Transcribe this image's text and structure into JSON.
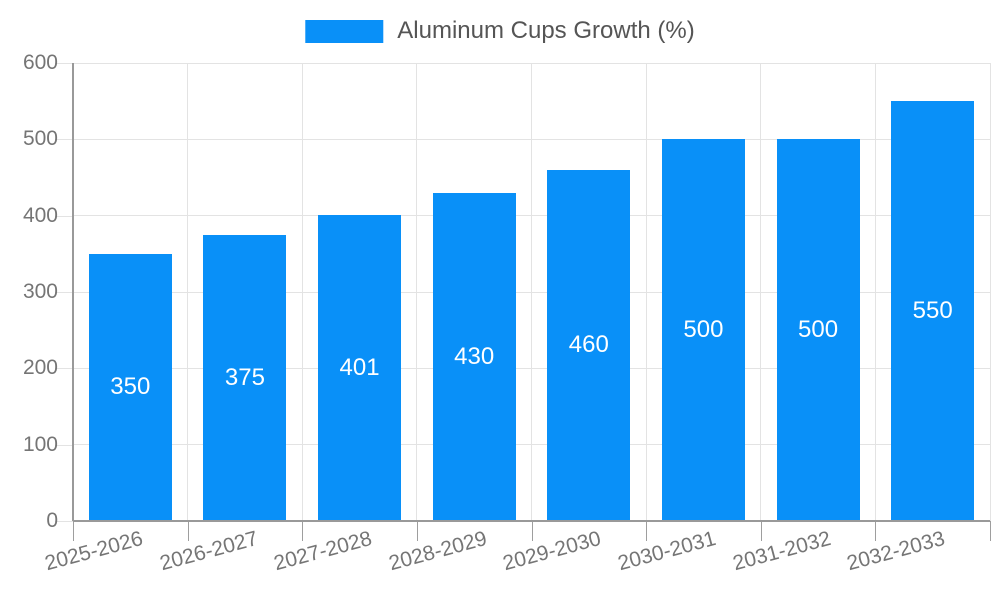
{
  "chart_data": {
    "type": "bar",
    "title": "Aluminum Cups Growth (%)",
    "categories": [
      "2025-2026",
      "2026-2027",
      "2027-2028",
      "2028-2029",
      "2029-2030",
      "2030-2031",
      "2031-2032",
      "2032-2033"
    ],
    "values": [
      350,
      375,
      401,
      430,
      460,
      500,
      500,
      550
    ],
    "bar_labels": [
      "350",
      "375",
      "401",
      "430",
      "460",
      "500",
      "500",
      "550"
    ],
    "xlabel": "",
    "ylabel": "",
    "ylim": [
      0,
      600
    ],
    "yticks": [
      0,
      100,
      200,
      300,
      400,
      500,
      600
    ],
    "grid": true,
    "legend_position": "top",
    "legend_entries": [
      "Aluminum Cups Growth (%)"
    ],
    "colors": {
      "bar": "#0990f8",
      "bar_label": "#ffffff",
      "grid": "#e3e3e3",
      "axis": "#999999",
      "tick": "#9e9e9e",
      "tick_label": "#757575",
      "legend_text": "#555555",
      "background": "#ffffff"
    }
  }
}
